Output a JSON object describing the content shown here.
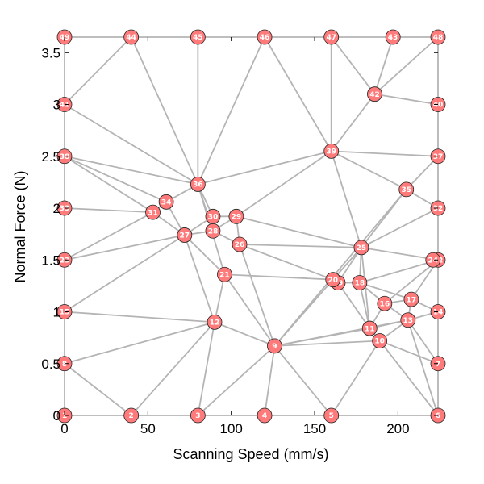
{
  "chart_data": {
    "type": "scatter",
    "title": "",
    "xlabel": "Scanning Speed (mm/s)",
    "ylabel": "Normal Force (N)",
    "xlim": [
      0,
      224
    ],
    "ylim": [
      0,
      3.65
    ],
    "xticks": [
      "0",
      "50",
      "100",
      "150",
      "200"
    ],
    "yticks": [
      "0",
      "0.5",
      "1",
      "1.5",
      "2",
      "2.5",
      "3",
      "3.5"
    ],
    "grid": false,
    "node_color": "#ff7b7b",
    "edge_color": "#b4b4b4",
    "nodes": [
      {
        "id": "1",
        "x": 0,
        "y": 0
      },
      {
        "id": "2",
        "x": 40,
        "y": 0
      },
      {
        "id": "3",
        "x": 80,
        "y": 0
      },
      {
        "id": "4",
        "x": 120,
        "y": 0
      },
      {
        "id": "5",
        "x": 160,
        "y": 0
      },
      {
        "id": "6",
        "x": 224,
        "y": 0
      },
      {
        "id": "7",
        "x": 224,
        "y": 0.5
      },
      {
        "id": "8",
        "x": 0,
        "y": 0.5
      },
      {
        "id": "9",
        "x": 126,
        "y": 0.67
      },
      {
        "id": "10",
        "x": 189,
        "y": 0.72
      },
      {
        "id": "11",
        "x": 183,
        "y": 0.84
      },
      {
        "id": "12",
        "x": 90,
        "y": 0.9
      },
      {
        "id": "13",
        "x": 206,
        "y": 0.92
      },
      {
        "id": "14",
        "x": 224,
        "y": 1.0
      },
      {
        "id": "15",
        "x": 0,
        "y": 1.0
      },
      {
        "id": "16",
        "x": 192,
        "y": 1.08
      },
      {
        "id": "17",
        "x": 208,
        "y": 1.12
      },
      {
        "id": "18",
        "x": 177,
        "y": 1.28
      },
      {
        "id": "19",
        "x": 164,
        "y": 1.28
      },
      {
        "id": "20",
        "x": 161,
        "y": 1.31
      },
      {
        "id": "21",
        "x": 96,
        "y": 1.36
      },
      {
        "id": "22",
        "x": 224,
        "y": 1.5
      },
      {
        "id": "23",
        "x": 0,
        "y": 1.5
      },
      {
        "id": "24",
        "x": 221,
        "y": 1.5
      },
      {
        "id": "25",
        "x": 178,
        "y": 1.62
      },
      {
        "id": "26",
        "x": 105,
        "y": 1.65
      },
      {
        "id": "27",
        "x": 72,
        "y": 1.74
      },
      {
        "id": "28",
        "x": 89,
        "y": 1.78
      },
      {
        "id": "29",
        "x": 103,
        "y": 1.92
      },
      {
        "id": "30",
        "x": 89,
        "y": 1.92
      },
      {
        "id": "31",
        "x": 53,
        "y": 1.96
      },
      {
        "id": "32",
        "x": 224,
        "y": 2.0
      },
      {
        "id": "33",
        "x": 0,
        "y": 2.0
      },
      {
        "id": "34",
        "x": 61,
        "y": 2.06
      },
      {
        "id": "35",
        "x": 205,
        "y": 2.18
      },
      {
        "id": "36",
        "x": 80,
        "y": 2.23
      },
      {
        "id": "37",
        "x": 224,
        "y": 2.5
      },
      {
        "id": "38",
        "x": 0,
        "y": 2.5
      },
      {
        "id": "39",
        "x": 160,
        "y": 2.55
      },
      {
        "id": "40",
        "x": 224,
        "y": 3.0
      },
      {
        "id": "41",
        "x": 0,
        "y": 3.0
      },
      {
        "id": "42",
        "x": 186,
        "y": 3.1
      },
      {
        "id": "43",
        "x": 197,
        "y": 3.65
      },
      {
        "id": "44",
        "x": 40,
        "y": 3.65
      },
      {
        "id": "45",
        "x": 80,
        "y": 3.65
      },
      {
        "id": "46",
        "x": 120,
        "y": 3.65
      },
      {
        "id": "47",
        "x": 160,
        "y": 3.65
      },
      {
        "id": "48",
        "x": 224,
        "y": 3.65
      },
      {
        "id": "49",
        "x": 0,
        "y": 3.65
      }
    ],
    "edges": [
      [
        "1",
        "2"
      ],
      [
        "2",
        "3"
      ],
      [
        "3",
        "4"
      ],
      [
        "4",
        "5"
      ],
      [
        "5",
        "6"
      ],
      [
        "6",
        "7"
      ],
      [
        "7",
        "14"
      ],
      [
        "14",
        "22"
      ],
      [
        "22",
        "32"
      ],
      [
        "32",
        "37"
      ],
      [
        "37",
        "40"
      ],
      [
        "40",
        "48"
      ],
      [
        "48",
        "43"
      ],
      [
        "43",
        "47"
      ],
      [
        "47",
        "46"
      ],
      [
        "46",
        "45"
      ],
      [
        "45",
        "44"
      ],
      [
        "44",
        "49"
      ],
      [
        "49",
        "41"
      ],
      [
        "41",
        "38"
      ],
      [
        "38",
        "33"
      ],
      [
        "33",
        "23"
      ],
      [
        "23",
        "15"
      ],
      [
        "15",
        "8"
      ],
      [
        "8",
        "1"
      ],
      [
        "2",
        "8"
      ],
      [
        "2",
        "12"
      ],
      [
        "3",
        "12"
      ],
      [
        "3",
        "9"
      ],
      [
        "4",
        "9"
      ],
      [
        "5",
        "9"
      ],
      [
        "5",
        "10"
      ],
      [
        "6",
        "10"
      ],
      [
        "6",
        "13"
      ],
      [
        "8",
        "12"
      ],
      [
        "15",
        "12"
      ],
      [
        "15",
        "27"
      ],
      [
        "23",
        "27"
      ],
      [
        "23",
        "31"
      ],
      [
        "33",
        "31"
      ],
      [
        "38",
        "31"
      ],
      [
        "38",
        "36"
      ],
      [
        "38",
        "34"
      ],
      [
        "41",
        "36"
      ],
      [
        "41",
        "44"
      ],
      [
        "44",
        "36"
      ],
      [
        "45",
        "36"
      ],
      [
        "46",
        "36"
      ],
      [
        "46",
        "39"
      ],
      [
        "47",
        "39"
      ],
      [
        "47",
        "42"
      ],
      [
        "43",
        "42"
      ],
      [
        "48",
        "42"
      ],
      [
        "42",
        "40"
      ],
      [
        "42",
        "39"
      ],
      [
        "39",
        "36"
      ],
      [
        "39",
        "29"
      ],
      [
        "39",
        "37"
      ],
      [
        "39",
        "35"
      ],
      [
        "39",
        "25"
      ],
      [
        "35",
        "32"
      ],
      [
        "35",
        "37"
      ],
      [
        "35",
        "25"
      ],
      [
        "35",
        "9"
      ],
      [
        "36",
        "34"
      ],
      [
        "36",
        "30"
      ],
      [
        "36",
        "28"
      ],
      [
        "36",
        "21"
      ],
      [
        "34",
        "31"
      ],
      [
        "34",
        "27"
      ],
      [
        "31",
        "27"
      ],
      [
        "27",
        "30"
      ],
      [
        "27",
        "28"
      ],
      [
        "27",
        "21"
      ],
      [
        "27",
        "12"
      ],
      [
        "30",
        "29"
      ],
      [
        "30",
        "28"
      ],
      [
        "28",
        "29"
      ],
      [
        "28",
        "26"
      ],
      [
        "29",
        "26"
      ],
      [
        "29",
        "25"
      ],
      [
        "26",
        "25"
      ],
      [
        "26",
        "20"
      ],
      [
        "26",
        "9"
      ],
      [
        "21",
        "12"
      ],
      [
        "21",
        "9"
      ],
      [
        "21",
        "20"
      ],
      [
        "12",
        "9"
      ],
      [
        "9",
        "11"
      ],
      [
        "9",
        "10"
      ],
      [
        "9",
        "25"
      ],
      [
        "9",
        "13"
      ],
      [
        "20",
        "19"
      ],
      [
        "20",
        "25"
      ],
      [
        "19",
        "25"
      ],
      [
        "19",
        "18"
      ],
      [
        "19",
        "11"
      ],
      [
        "18",
        "25"
      ],
      [
        "18",
        "16"
      ],
      [
        "18",
        "17"
      ],
      [
        "18",
        "11"
      ],
      [
        "18",
        "22"
      ],
      [
        "25",
        "22"
      ],
      [
        "25",
        "32"
      ],
      [
        "25",
        "11"
      ],
      [
        "16",
        "11"
      ],
      [
        "16",
        "17"
      ],
      [
        "17",
        "14"
      ],
      [
        "17",
        "13"
      ],
      [
        "17",
        "22"
      ],
      [
        "16",
        "13"
      ],
      [
        "11",
        "10"
      ],
      [
        "11",
        "13"
      ],
      [
        "10",
        "13"
      ],
      [
        "10",
        "7"
      ],
      [
        "13",
        "14"
      ],
      [
        "13",
        "7"
      ],
      [
        "22",
        "16"
      ]
    ]
  }
}
